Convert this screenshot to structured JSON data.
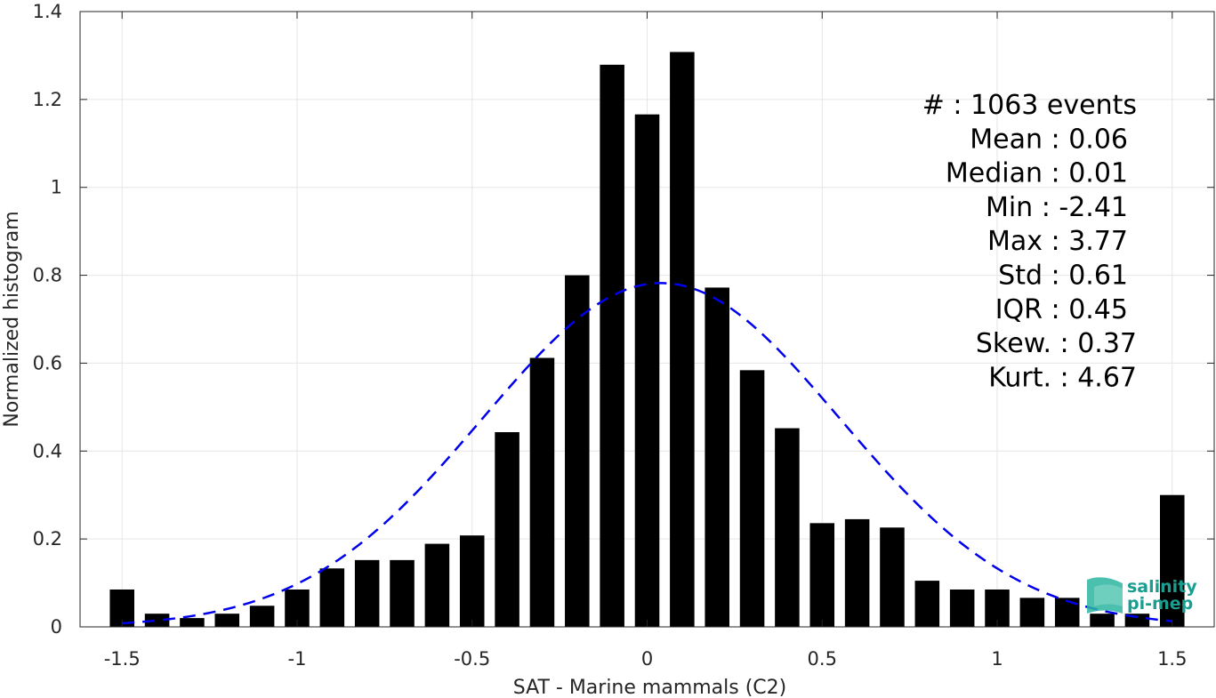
{
  "chart_data": {
    "type": "bar",
    "xlabel": "SAT - Marine mammals (C2)",
    "ylabel": "Normalized histogram",
    "xlim": [
      -1.62,
      1.62
    ],
    "ylim": [
      0,
      1.4
    ],
    "xticks": [
      "-1.5",
      "-1",
      "-0.5",
      "0",
      "0.5",
      "1",
      "1.5"
    ],
    "xtick_values": [
      -1.5,
      -1,
      -0.5,
      0,
      0.5,
      1,
      1.5
    ],
    "yticks": [
      "0",
      "0.2",
      "0.4",
      "0.6",
      "0.8",
      "1",
      "1.2",
      "1.4"
    ],
    "ytick_values": [
      0,
      0.2,
      0.4,
      0.6,
      0.8,
      1,
      1.2,
      1.4
    ],
    "grid": true,
    "bar_color": "#000000",
    "x": [
      -1.5,
      -1.4,
      -1.3,
      -1.2,
      -1.1,
      -1.0,
      -0.9,
      -0.8,
      -0.7,
      -0.6,
      -0.5,
      -0.4,
      -0.3,
      -0.2,
      -0.1,
      0.0,
      0.1,
      0.2,
      0.3,
      0.4,
      0.5,
      0.6,
      0.7,
      0.8,
      0.9,
      1.0,
      1.1,
      1.2,
      1.3,
      1.4,
      1.5
    ],
    "values": [
      0.085,
      0.03,
      0.02,
      0.03,
      0.048,
      0.085,
      0.133,
      0.152,
      0.152,
      0.189,
      0.208,
      0.443,
      0.612,
      0.8,
      1.279,
      1.166,
      1.308,
      0.772,
      0.584,
      0.452,
      0.236,
      0.245,
      0.226,
      0.105,
      0.085,
      0.085,
      0.066,
      0.066,
      0.03,
      0.03,
      0.3
    ],
    "fit": {
      "type": "normal",
      "mean": 0.04,
      "std": 0.51,
      "color": "#0000ee",
      "style": "dashed",
      "x_range": [
        -1.5,
        1.5
      ]
    },
    "stats": [
      "#  : 1063 events",
      "Mean : 0.06",
      "Median : 0.01",
      "Min : -2.41",
      "Max : 3.77",
      "Std : 0.61",
      "IQR : 0.45",
      "Skew. : 0.37",
      "Kurt. : 4.67"
    ]
  },
  "logo": {
    "line1": "salinity",
    "line2": "pi-mep",
    "color": "#1a9e8f"
  }
}
